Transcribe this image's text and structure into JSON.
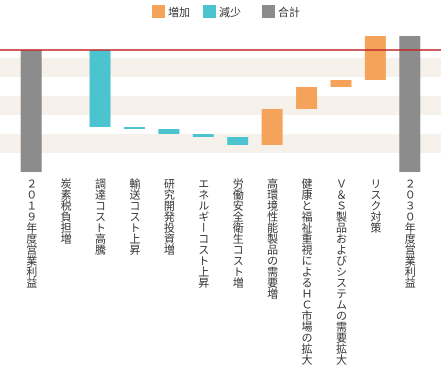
{
  "chart_data": {
    "type": "waterfall",
    "legend": [
      {
        "name": "増加",
        "color": "#f5a35a"
      },
      {
        "name": "減少",
        "color": "#4cc4d0"
      },
      {
        "name": "合計",
        "color": "#8c8c8c"
      }
    ],
    "categories": [
      "２０１９年度営業利益",
      "炭素税負担増",
      "調達コスト高騰",
      "輸送コスト上昇",
      "研究開発投資増",
      "エネルギーコスト上昇",
      "労働安全衛生コスト増",
      "高環境性能製品の需要増",
      "健康と福祉重視によるＨＣ市場の拡大",
      "Ｖ＆Ｓ製品およびシステムの需要拡大",
      "リスク対策",
      "２０３０年度営業利益"
    ],
    "measure": [
      "total",
      "relative",
      "relative",
      "relative",
      "relative",
      "relative",
      "relative",
      "relative",
      "relative",
      "relative",
      "relative",
      "total"
    ],
    "values": [
      122,
      0,
      -77,
      -2,
      -5,
      -3,
      -8,
      36,
      22,
      7,
      44,
      136
    ],
    "ylim": [
      0,
      142
    ],
    "reference_line_color": "#c0282d"
  }
}
